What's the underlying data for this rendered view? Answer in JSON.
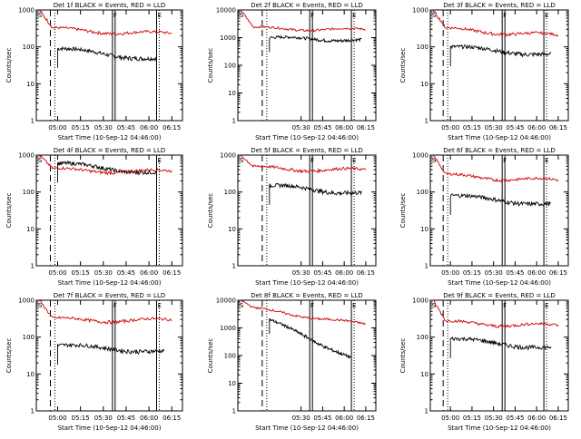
{
  "chart_data": [
    {
      "type": "line",
      "title": "Det 1f BLACK = Events, RED = LLD",
      "xlabel": "Start Time (10-Sep-12 04:46:00)",
      "ylabel": "Counts/sec",
      "xticks": [
        "05:00",
        "05:15",
        "05:30",
        "05:45",
        "06:00",
        "06:15"
      ],
      "yticks": [
        "1",
        "10",
        "100",
        "1000"
      ],
      "ylim": [
        1,
        1000
      ],
      "yscale": "log",
      "markers": [
        "S",
        "F",
        "E"
      ],
      "series": [
        {
          "name": "Events",
          "color": "#000000",
          "x_start": "05:00",
          "x_end": "06:05",
          "y_start": 90,
          "y_end": 45
        },
        {
          "name": "LLD",
          "color": "#d00000",
          "x_start": "04:48",
          "x_end": "06:15",
          "y_peak": 1000,
          "y_mid": 300,
          "y_end": 220
        }
      ]
    },
    {
      "type": "line",
      "title": "Det 2f BLACK = Events, RED = LLD",
      "xlabel": "Start Time (10-Sep-12 04:46:00)",
      "ylabel": "Counts/sec",
      "xticks": [
        "05:30",
        "05:45",
        "06:00",
        "06:15"
      ],
      "yticks": [
        "1",
        "10",
        "100",
        "1000",
        "10000"
      ],
      "ylim": [
        1,
        10000
      ],
      "yscale": "log",
      "markers": [
        "S",
        "F",
        "E"
      ],
      "series": [
        {
          "name": "Events",
          "color": "#000000",
          "x_start": "05:08",
          "x_end": "06:12",
          "y_start": 1000,
          "y_end": 800
        },
        {
          "name": "LLD",
          "color": "#d00000",
          "x_start": "04:48",
          "x_end": "06:15",
          "y_peak": 10000,
          "y_mid": 2200,
          "y_end": 1900
        }
      ]
    },
    {
      "type": "line",
      "title": "Det 3f BLACK = Events, RED = LLD",
      "xlabel": "Start Time (10-Sep-12 04:46:00)",
      "ylabel": "Counts/sec",
      "xticks": [
        "05:00",
        "05:15",
        "05:30",
        "05:45",
        "06:00",
        "06:15"
      ],
      "yticks": [
        "1",
        "10",
        "100",
        "1000"
      ],
      "ylim": [
        1,
        1000
      ],
      "yscale": "log",
      "markers": [
        "S",
        "F",
        "E"
      ],
      "series": [
        {
          "name": "Events",
          "color": "#000000",
          "x_start": "05:00",
          "x_end": "06:10",
          "y_start": 100,
          "y_end": 60
        },
        {
          "name": "LLD",
          "color": "#d00000",
          "x_start": "04:48",
          "x_end": "06:15",
          "y_peak": 1000,
          "y_mid": 300,
          "y_end": 200
        }
      ]
    },
    {
      "type": "line",
      "title": "Det 4f BLACK = Events, RED = LLD",
      "xlabel": "Start Time (10-Sep-12 04:46:00)",
      "ylabel": "Counts/sec",
      "xticks": [
        "05:00",
        "05:15",
        "05:30",
        "05:45",
        "06:00",
        "06:15"
      ],
      "yticks": [
        "1",
        "10",
        "100",
        "1000"
      ],
      "ylim": [
        1,
        1000
      ],
      "yscale": "log",
      "markers": [
        "S",
        "E"
      ],
      "series": [
        {
          "name": "Events",
          "color": "#000000",
          "x_start": "05:00",
          "x_end": "06:05",
          "y_start": 600,
          "y_end": 320
        },
        {
          "name": "LLD",
          "color": "#d00000",
          "x_start": "04:48",
          "x_end": "06:15",
          "y_peak": 1000,
          "y_mid": 400,
          "y_end": 350
        }
      ]
    },
    {
      "type": "line",
      "title": "Det 5f BLACK = Events, RED = LLD",
      "xlabel": "Start Time (10-Sep-12 04:46:00)",
      "ylabel": "Counts/sec",
      "xticks": [
        "05:30",
        "05:45",
        "06:00",
        "06:15"
      ],
      "yticks": [
        "1",
        "10",
        "100",
        "1000"
      ],
      "ylim": [
        1,
        1000
      ],
      "yscale": "log",
      "markers": [
        "S",
        "F",
        "E"
      ],
      "series": [
        {
          "name": "Events",
          "color": "#000000",
          "x_start": "05:08",
          "x_end": "06:12",
          "y_start": 150,
          "y_end": 90
        },
        {
          "name": "LLD",
          "color": "#d00000",
          "x_start": "04:48",
          "x_end": "06:15",
          "y_peak": 1000,
          "y_mid": 450,
          "y_end": 380
        }
      ]
    },
    {
      "type": "line",
      "title": "Det 6f BLACK = Events, RED = LLD",
      "xlabel": "Start Time (10-Sep-12 04:46:00)",
      "ylabel": "Counts/sec",
      "xticks": [
        "05:00",
        "05:15",
        "05:30",
        "05:45",
        "06:00",
        "06:15"
      ],
      "yticks": [
        "1",
        "10",
        "100",
        "1000"
      ],
      "ylim": [
        1,
        1000
      ],
      "yscale": "log",
      "markers": [
        "S",
        "F",
        "E"
      ],
      "series": [
        {
          "name": "Events",
          "color": "#000000",
          "x_start": "05:00",
          "x_end": "06:10",
          "y_start": 80,
          "y_end": 45
        },
        {
          "name": "LLD",
          "color": "#d00000",
          "x_start": "04:48",
          "x_end": "06:15",
          "y_peak": 1000,
          "y_mid": 280,
          "y_end": 200
        }
      ]
    },
    {
      "type": "line",
      "title": "Det 7f BLACK = Events, RED = LLD",
      "xlabel": "Start Time (10-Sep-12 04:46:00)",
      "ylabel": "Counts/sec",
      "xticks": [
        "05:00",
        "05:15",
        "05:30",
        "05:45",
        "06:00",
        "06:15"
      ],
      "yticks": [
        "1",
        "10",
        "100",
        "1000"
      ],
      "ylim": [
        1,
        1000
      ],
      "yscale": "log",
      "markers": [
        "S",
        "F",
        "E"
      ],
      "series": [
        {
          "name": "Events",
          "color": "#000000",
          "x_start": "05:00",
          "x_end": "06:10",
          "y_start": 60,
          "y_end": 40
        },
        {
          "name": "LLD",
          "color": "#d00000",
          "x_start": "04:48",
          "x_end": "06:15",
          "y_peak": 1000,
          "y_mid": 300,
          "y_end": 280
        }
      ]
    },
    {
      "type": "line",
      "title": "Det 8f BLACK = Events, RED = LLD",
      "xlabel": "Start Time (10-Sep-12 04:46:00)",
      "ylabel": "Counts/sec",
      "xticks": [
        "05:30",
        "05:45",
        "06:00",
        "06:15"
      ],
      "yticks": [
        "1",
        "10",
        "100",
        "1000",
        "10000"
      ],
      "ylim": [
        1,
        10000
      ],
      "yscale": "log",
      "markers": [
        "S",
        "F",
        "E"
      ],
      "series": [
        {
          "name": "Events",
          "color": "#000000",
          "x_start": "05:08",
          "x_end": "06:05",
          "y_start": 2000,
          "y_end": 80
        },
        {
          "name": "LLD",
          "color": "#d00000",
          "x_start": "04:48",
          "x_end": "06:15",
          "y_peak": 10000,
          "y_mid": 5000,
          "y_end": 1300
        }
      ]
    },
    {
      "type": "line",
      "title": "Det 9f BLACK = Events, RED = LLD",
      "xlabel": "Start Time (10-Sep-12 04:46:00)",
      "ylabel": "Counts/sec",
      "xticks": [
        "05:00",
        "05:15",
        "05:30",
        "05:45",
        "06:00",
        "06:15"
      ],
      "yticks": [
        "1",
        "10",
        "100",
        "1000"
      ],
      "ylim": [
        1,
        1000
      ],
      "yscale": "log",
      "markers": [
        "S",
        "F",
        "E"
      ],
      "series": [
        {
          "name": "Events",
          "color": "#000000",
          "x_start": "05:00",
          "x_end": "06:10",
          "y_start": 90,
          "y_end": 50
        },
        {
          "name": "LLD",
          "color": "#d00000",
          "x_start": "04:48",
          "x_end": "06:15",
          "y_peak": 1000,
          "y_mid": 250,
          "y_end": 200
        }
      ]
    }
  ]
}
